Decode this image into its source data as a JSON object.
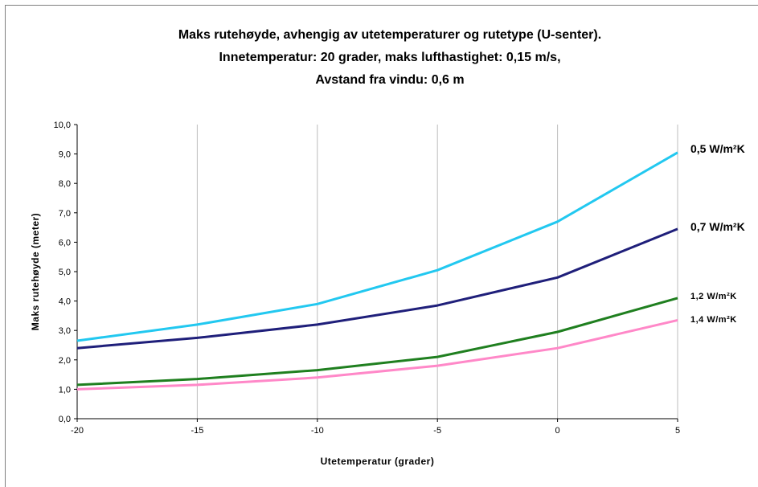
{
  "chart_data": {
    "type": "line",
    "title_lines": [
      "Maks rutehøyde, avhengig av utetemperaturer og rutetype (U-senter).",
      "Innetemperatur: 20 grader, maks lufthastighet: 0,15 m/s,",
      "Avstand fra vindu: 0,6 m"
    ],
    "xlabel": "Utetemperatur (grader)",
    "ylabel": "Maks rutehøyde (meter)",
    "x": [
      -20,
      -15,
      -10,
      -5,
      0,
      5
    ],
    "xlim": [
      -20,
      5
    ],
    "ylim": [
      0,
      10
    ],
    "x_ticks": [
      -20,
      -15,
      -10,
      -5,
      0,
      5
    ],
    "x_tick_labels": [
      "-20",
      "-15",
      "-10",
      "-5",
      "0",
      "5"
    ],
    "y_ticks": [
      0,
      1,
      2,
      3,
      4,
      5,
      6,
      7,
      8,
      9,
      10
    ],
    "y_tick_labels": [
      "0,0",
      "1,0",
      "2,0",
      "3,0",
      "4,0",
      "5,0",
      "6,0",
      "7,0",
      "8,0",
      "9,0",
      "10,0"
    ],
    "grid": "vertical",
    "series": [
      {
        "name": "0,5 W/m²K",
        "color": "#22c8f0",
        "values": [
          2.65,
          3.2,
          3.9,
          5.05,
          6.7,
          9.05
        ]
      },
      {
        "name": "0,7 W/m²K",
        "color": "#1f1f7a",
        "values": [
          2.4,
          2.75,
          3.2,
          3.85,
          4.8,
          6.45
        ]
      },
      {
        "name": "1,2 W/m²K",
        "color": "#1f7f1f",
        "values": [
          1.15,
          1.35,
          1.65,
          2.1,
          2.95,
          4.1
        ]
      },
      {
        "name": "1,4 W/m²K",
        "color": "#ff88c8",
        "values": [
          1.0,
          1.15,
          1.4,
          1.8,
          2.4,
          3.35
        ]
      }
    ],
    "legend": "right"
  }
}
